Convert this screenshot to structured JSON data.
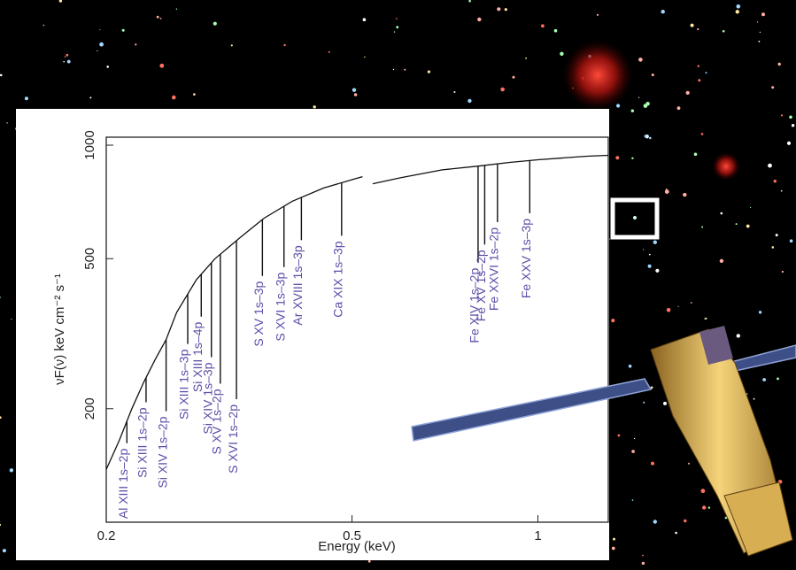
{
  "chart_data": {
    "type": "line",
    "x_label": "Energy (keV)",
    "y_label": "νF(ν) keV cm⁻² s⁻¹",
    "log_x": true,
    "log_y": true,
    "xlim": [
      0.2,
      1.3
    ],
    "xticks": [
      0.2,
      0.5,
      1
    ],
    "ylim": [
      100,
      1050
    ],
    "yticks": [
      200,
      500,
      1000
    ],
    "series": [
      {
        "color": "#111111",
        "x": [
          0.2,
          0.21,
          0.22,
          0.23,
          0.24,
          0.25,
          0.26,
          0.28,
          0.3,
          0.33,
          0.36,
          0.4,
          0.45,
          0.5,
          0.52,
          0.53,
          0.54,
          0.6,
          0.7,
          0.8,
          0.9,
          1.0,
          1.1,
          1.2,
          1.3
        ],
        "values": [
          138,
          165,
          200,
          235,
          270,
          305,
          360,
          440,
          500,
          570,
          640,
          710,
          770,
          810,
          825,
          null,
          790,
          820,
          860,
          880,
          900,
          915,
          925,
          935,
          940
        ]
      }
    ],
    "absorption_lines": {
      "color": "#5b4fa8",
      "labels": [
        "Al XIII 1s–2p",
        "Si XIII 1s–2p",
        "Si XIV 1s–2p",
        "Si XIII 1s–3p",
        "Si XIII 1s–4p",
        "Si XIV 1s–3p",
        "S XV 1s–2p",
        "S XVI 1s–2p",
        "S XV 1s–3p",
        "S XVI 1s–3p",
        "Ar XVIII 1s–3p",
        "Ca XIX 1s–3p",
        "Fe XIV 1s–2p",
        "Fe XV 1s–2p",
        "Fe XXVI 1s–2p",
        "Fe XXV 1s–3p"
      ],
      "energies": [
        0.216,
        0.232,
        0.25,
        0.271,
        0.285,
        0.296,
        0.306,
        0.325,
        0.358,
        0.388,
        0.414,
        0.481,
        0.8,
        0.82,
        0.86,
        0.97
      ],
      "values": [
        162,
        208,
        197,
        297,
        351,
        274,
        233,
        212,
        450,
        475,
        560,
        575,
        488,
        545,
        625,
        660
      ]
    }
  }
}
